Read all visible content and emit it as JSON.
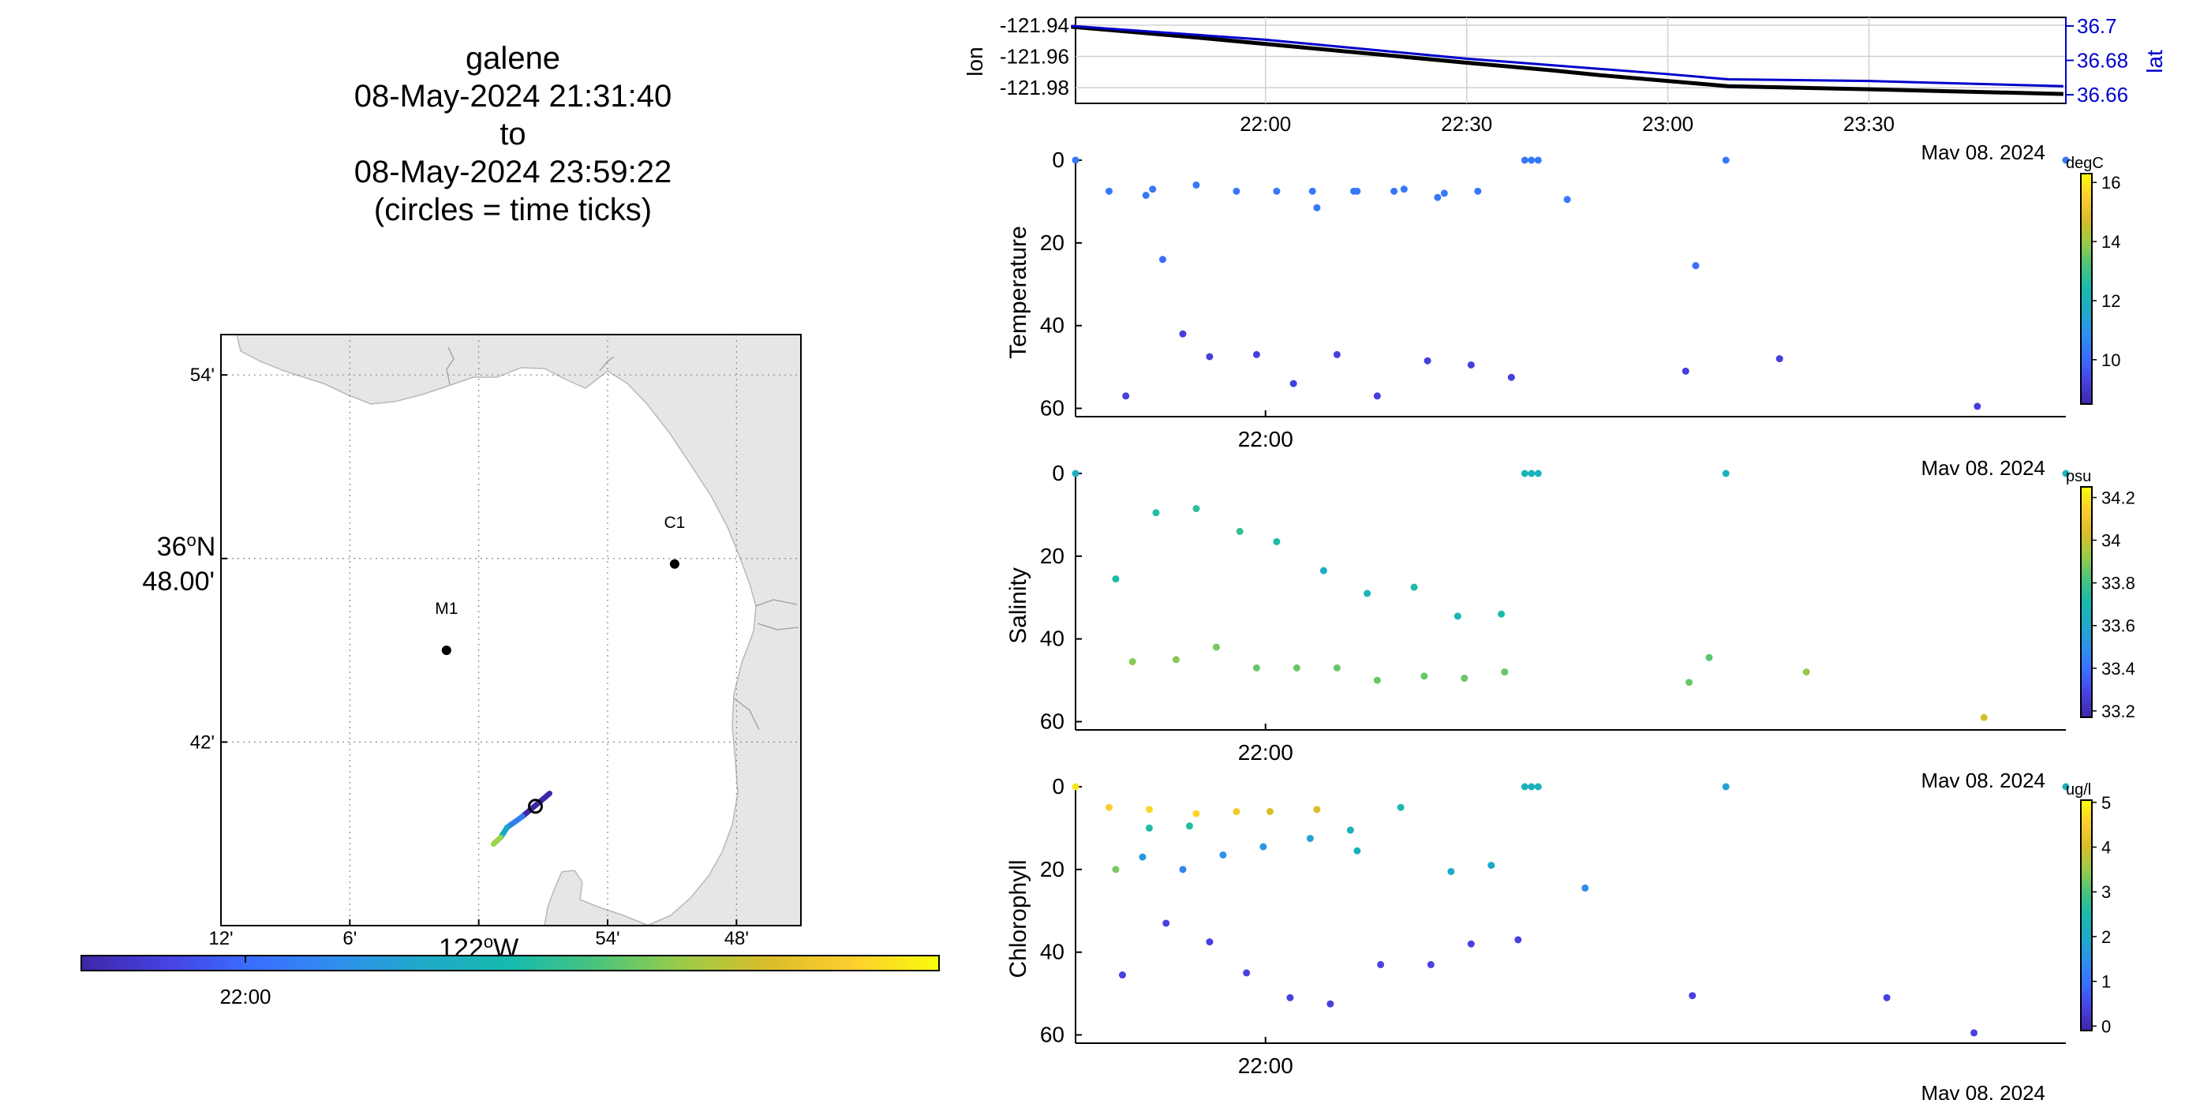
{
  "title": {
    "glider": "galene",
    "start": "08-May-2024 21:31:40",
    "to": "to",
    "end": "08-May-2024 23:59:22",
    "note": "(circles = time ticks)"
  },
  "map": {
    "lat_labels": [
      "54'",
      "36°N 48.00'",
      "42'"
    ],
    "lat_values": [
      54,
      48,
      42
    ],
    "lon_labels": [
      "12'",
      "6'",
      "122°W",
      "54'",
      "48'"
    ],
    "lon_values": [
      -122.2,
      -122.1,
      -122.0,
      -121.9,
      -121.8
    ],
    "lon_axis_label": "122°W",
    "lat_axis_label_deg": "36",
    "lat_axis_label_min": "48.00'",
    "stations": [
      {
        "name": "C1",
        "lon": -121.848,
        "lat": 36.797
      },
      {
        "name": "M1",
        "lon": -122.025,
        "lat": 36.75
      }
    ],
    "track": [
      {
        "lon": -121.945,
        "lat": 36.672
      },
      {
        "lon": -121.966,
        "lat": 36.6595
      },
      {
        "lon": -121.978,
        "lat": 36.6535
      },
      {
        "lon": -121.983,
        "lat": 36.648
      },
      {
        "lon": -121.9885,
        "lat": 36.6445
      }
    ],
    "track_colors": [
      "#3e26a8",
      "#2f7eed",
      "#17aac2",
      "#9ad449",
      "#f9fb0e"
    ],
    "tick_circle": {
      "lon": -121.956,
      "lat": 36.665
    },
    "colorbar_tick": "22:00",
    "land_color": "#e6e6e6"
  },
  "chart_data": [
    {
      "type": "line",
      "title": "",
      "xlabel": "Mav 08. 2024",
      "ylabel": "lon",
      "y2label": "lat",
      "x_ticks": [
        "22:00",
        "22:30",
        "23:00",
        "23:30"
      ],
      "x_range": [
        "21:31:40",
        "23:59:22"
      ],
      "y_ticks": [
        -121.94,
        -121.96,
        -121.98
      ],
      "ylim": [
        -121.99,
        -121.935
      ],
      "y2_ticks": [
        36.7,
        36.68,
        36.66
      ],
      "y2lim": [
        36.655,
        36.705
      ],
      "series": [
        {
          "axis": "left",
          "color": "#000000",
          "x": [
            "21:31",
            "21:50",
            "22:10",
            "22:30",
            "22:43",
            "22:50",
            "23:09",
            "23:30",
            "23:59"
          ],
          "values": [
            -121.941,
            -121.948,
            -121.956,
            -121.964,
            -121.969,
            -121.972,
            -121.979,
            -121.981,
            -121.984
          ]
        },
        {
          "axis": "right",
          "color": "#0000cc",
          "x": [
            "21:31",
            "22:00",
            "22:30",
            "23:00",
            "23:09",
            "23:30",
            "23:59"
          ],
          "values": [
            36.7,
            36.692,
            36.681,
            36.672,
            36.669,
            36.668,
            36.665
          ]
        }
      ],
      "grid": true
    },
    {
      "type": "scatter",
      "ylabel": "Temperature",
      "xlabel": "Mav 08. 2024",
      "x_ticks": [
        "22:00"
      ],
      "y_ticks": [
        0,
        20,
        40,
        60
      ],
      "ylim": [
        0,
        62
      ],
      "colorbar": {
        "unit": "degC",
        "ticks": [
          16,
          14,
          12,
          10
        ],
        "range": [
          8.5,
          16.3
        ]
      },
      "points": [
        {
          "t": "21:31:40",
          "depth": 0,
          "v": 10.3
        },
        {
          "t": "21:36:40",
          "depth": 7.5,
          "v": 10.3
        },
        {
          "t": "21:42:10",
          "depth": 8.5,
          "v": 10.3
        },
        {
          "t": "21:43:10",
          "depth": 7,
          "v": 10.3
        },
        {
          "t": "21:49:40",
          "depth": 6,
          "v": 10.3
        },
        {
          "t": "21:55:40",
          "depth": 7.5,
          "v": 10.3
        },
        {
          "t": "22:01:40",
          "depth": 7.5,
          "v": 10.3
        },
        {
          "t": "22:07:00",
          "depth": 7.5,
          "v": 10.3
        },
        {
          "t": "22:07:40",
          "depth": 11.5,
          "v": 10.3
        },
        {
          "t": "22:13:10",
          "depth": 7.5,
          "v": 10.3
        },
        {
          "t": "22:13:40",
          "depth": 7.5,
          "v": 10.3
        },
        {
          "t": "22:19:10",
          "depth": 7.5,
          "v": 10.3
        },
        {
          "t": "22:20:40",
          "depth": 7,
          "v": 10.3
        },
        {
          "t": "22:25:40",
          "depth": 9,
          "v": 10.3
        },
        {
          "t": "22:26:40",
          "depth": 8,
          "v": 10.3
        },
        {
          "t": "22:31:40",
          "depth": 7.5,
          "v": 10.3
        },
        {
          "t": "22:38:40",
          "depth": 0,
          "v": 10.3
        },
        {
          "t": "22:39:40",
          "depth": 0,
          "v": 10.3
        },
        {
          "t": "22:40:40",
          "depth": 0,
          "v": 10.3
        },
        {
          "t": "22:45:00",
          "depth": 9.5,
          "v": 10.3
        },
        {
          "t": "23:08:40",
          "depth": 0,
          "v": 10.3
        },
        {
          "t": "21:44:40",
          "depth": 24,
          "v": 10.0
        },
        {
          "t": "23:04:10",
          "depth": 25.5,
          "v": 10.0
        },
        {
          "t": "21:47:40",
          "depth": 42,
          "v": 9.2
        },
        {
          "t": "21:39:10",
          "depth": 57,
          "v": 9.2
        },
        {
          "t": "21:51:40",
          "depth": 47.5,
          "v": 9.2
        },
        {
          "t": "21:58:40",
          "depth": 47,
          "v": 9.2
        },
        {
          "t": "22:04:10",
          "depth": 54,
          "v": 9.2
        },
        {
          "t": "22:10:40",
          "depth": 47,
          "v": 9.2
        },
        {
          "t": "22:16:40",
          "depth": 57,
          "v": 9.2
        },
        {
          "t": "22:24:10",
          "depth": 48.5,
          "v": 9.2
        },
        {
          "t": "22:30:40",
          "depth": 49.5,
          "v": 9.2
        },
        {
          "t": "22:36:40",
          "depth": 52.5,
          "v": 9.2
        },
        {
          "t": "23:02:40",
          "depth": 51,
          "v": 9.2
        },
        {
          "t": "23:16:40",
          "depth": 48,
          "v": 9.2
        },
        {
          "t": "23:46:10",
          "depth": 59.5,
          "v": 9.2
        },
        {
          "t": "23:59:22",
          "depth": 0,
          "v": 10.3
        }
      ]
    },
    {
      "type": "scatter",
      "ylabel": "Salinity",
      "xlabel": "Mav 08. 2024",
      "x_ticks": [
        "22:00"
      ],
      "y_ticks": [
        0,
        20,
        40,
        60
      ],
      "ylim": [
        0,
        62
      ],
      "colorbar": {
        "unit": "psu",
        "ticks": [
          34.2,
          34,
          33.8,
          33.6,
          33.4,
          33.2
        ],
        "range": [
          33.17,
          34.25
        ]
      },
      "points": [
        {
          "t": "21:31:40",
          "depth": 0,
          "v": 33.62
        },
        {
          "t": "21:37:40",
          "depth": 25.5,
          "v": 33.72
        },
        {
          "t": "21:43:40",
          "depth": 9.5,
          "v": 33.74
        },
        {
          "t": "21:49:40",
          "depth": 8.5,
          "v": 33.76
        },
        {
          "t": "21:56:10",
          "depth": 14,
          "v": 33.78
        },
        {
          "t": "22:01:40",
          "depth": 16.5,
          "v": 33.72
        },
        {
          "t": "22:08:40",
          "depth": 23.5,
          "v": 33.62
        },
        {
          "t": "22:15:10",
          "depth": 29,
          "v": 33.66
        },
        {
          "t": "22:22:10",
          "depth": 27.5,
          "v": 33.72
        },
        {
          "t": "22:28:40",
          "depth": 34.5,
          "v": 33.68
        },
        {
          "t": "22:35:10",
          "depth": 34,
          "v": 33.72
        },
        {
          "t": "22:38:40",
          "depth": 0,
          "v": 33.66
        },
        {
          "t": "22:39:40",
          "depth": 0,
          "v": 33.66
        },
        {
          "t": "22:40:40",
          "depth": 0,
          "v": 33.66
        },
        {
          "t": "23:08:40",
          "depth": 0,
          "v": 33.66
        },
        {
          "t": "23:59:22",
          "depth": 0,
          "v": 33.66
        },
        {
          "t": "21:40:10",
          "depth": 45.5,
          "v": 33.9
        },
        {
          "t": "21:46:40",
          "depth": 45,
          "v": 33.9
        },
        {
          "t": "21:52:40",
          "depth": 42,
          "v": 33.88
        },
        {
          "t": "21:58:40",
          "depth": 47,
          "v": 33.86
        },
        {
          "t": "22:04:40",
          "depth": 47,
          "v": 33.86
        },
        {
          "t": "22:10:40",
          "depth": 47,
          "v": 33.86
        },
        {
          "t": "22:16:40",
          "depth": 50,
          "v": 33.86
        },
        {
          "t": "22:23:40",
          "depth": 49,
          "v": 33.86
        },
        {
          "t": "22:29:40",
          "depth": 49.5,
          "v": 33.86
        },
        {
          "t": "22:35:40",
          "depth": 48,
          "v": 33.86
        },
        {
          "t": "23:03:10",
          "depth": 50.5,
          "v": 33.86
        },
        {
          "t": "23:06:10",
          "depth": 44.5,
          "v": 33.84
        },
        {
          "t": "23:20:40",
          "depth": 48,
          "v": 33.92
        },
        {
          "t": "23:47:10",
          "depth": 59,
          "v": 34.02
        }
      ]
    },
    {
      "type": "scatter",
      "ylabel": "Chlorophyll",
      "xlabel": "Mav 08. 2024",
      "x_ticks": [
        "22:00"
      ],
      "y_ticks": [
        0,
        20,
        40,
        60
      ],
      "ylim": [
        0,
        62
      ],
      "colorbar": {
        "unit": "ug/l",
        "ticks": [
          5,
          4,
          3,
          2,
          1,
          0
        ],
        "range": [
          -0.1,
          5.05
        ]
      },
      "points": [
        {
          "t": "21:31:40",
          "depth": 0,
          "v": 4.8
        },
        {
          "t": "21:36:40",
          "depth": 5,
          "v": 4.5
        },
        {
          "t": "21:42:40",
          "depth": 5.5,
          "v": 4.6
        },
        {
          "t": "21:49:40",
          "depth": 6.5,
          "v": 4.6
        },
        {
          "t": "21:55:40",
          "depth": 6,
          "v": 4.4
        },
        {
          "t": "22:00:40",
          "depth": 6,
          "v": 4.0
        },
        {
          "t": "22:07:40",
          "depth": 5.5,
          "v": 4.0
        },
        {
          "t": "21:37:40",
          "depth": 20,
          "v": 3.3
        },
        {
          "t": "21:42:40",
          "depth": 10,
          "v": 2.6
        },
        {
          "t": "21:48:40",
          "depth": 9.5,
          "v": 2.6
        },
        {
          "t": "21:41:40",
          "depth": 17,
          "v": 1.6
        },
        {
          "t": "21:47:40",
          "depth": 20,
          "v": 1.3
        },
        {
          "t": "21:53:40",
          "depth": 16.5,
          "v": 1.5
        },
        {
          "t": "21:59:40",
          "depth": 14.5,
          "v": 1.6
        },
        {
          "t": "22:06:40",
          "depth": 12.5,
          "v": 1.8
        },
        {
          "t": "22:12:40",
          "depth": 10.5,
          "v": 2.2
        },
        {
          "t": "22:13:40",
          "depth": 15.5,
          "v": 2.2
        },
        {
          "t": "22:20:10",
          "depth": 5,
          "v": 2.5
        },
        {
          "t": "22:27:40",
          "depth": 20.5,
          "v": 2.0
        },
        {
          "t": "22:33:40",
          "depth": 19,
          "v": 2.0
        },
        {
          "t": "22:38:40",
          "depth": 0,
          "v": 2.2
        },
        {
          "t": "22:39:40",
          "depth": 0,
          "v": 2.2
        },
        {
          "t": "22:40:40",
          "depth": 0,
          "v": 2.2
        },
        {
          "t": "22:47:40",
          "depth": 24.5,
          "v": 1.4
        },
        {
          "t": "23:08:40",
          "depth": 0,
          "v": 1.8
        },
        {
          "t": "23:59:22",
          "depth": 0,
          "v": 2.2
        },
        {
          "t": "21:38:40",
          "depth": 45.5,
          "v": 0.4
        },
        {
          "t": "21:45:10",
          "depth": 33,
          "v": 0.4
        },
        {
          "t": "21:51:40",
          "depth": 37.5,
          "v": 0.4
        },
        {
          "t": "21:57:10",
          "depth": 45,
          "v": 0.4
        },
        {
          "t": "22:03:40",
          "depth": 51,
          "v": 0.4
        },
        {
          "t": "22:09:40",
          "depth": 52.5,
          "v": 0.4
        },
        {
          "t": "22:17:10",
          "depth": 43,
          "v": 0.4
        },
        {
          "t": "22:24:40",
          "depth": 43,
          "v": 0.4
        },
        {
          "t": "22:30:40",
          "depth": 38,
          "v": 0.4
        },
        {
          "t": "22:37:40",
          "depth": 37,
          "v": 0.4
        },
        {
          "t": "23:03:40",
          "depth": 50.5,
          "v": 0.4
        },
        {
          "t": "23:32:40",
          "depth": 51,
          "v": 0.4
        },
        {
          "t": "23:45:40",
          "depth": 59.5,
          "v": 0.4
        }
      ]
    }
  ]
}
